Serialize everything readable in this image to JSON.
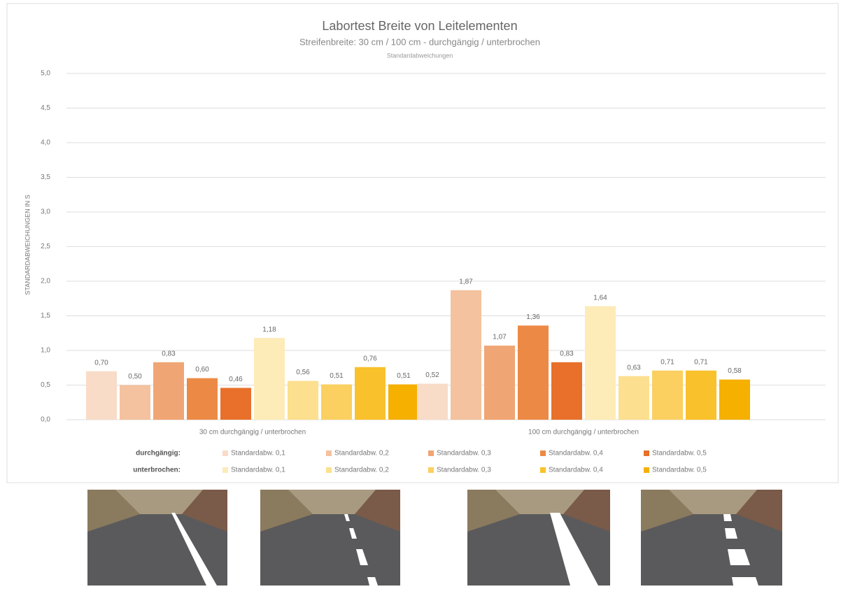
{
  "chart_data": {
    "type": "bar",
    "title": "Labortest Breite von Leitelementen",
    "subtitle": "Streifenbreite: 30 cm / 100 cm - durchgängig / unterbrochen",
    "note": "Standardabweichungen",
    "y_label": "STANDARDABWEICHUNGEN IN S",
    "categories": [
      "30 cm durchgängig / unterbrochen",
      "100 cm durchgängig / unterbrochen"
    ],
    "legend_rows": [
      "durchgängig:",
      "unterbrochen:"
    ],
    "series": [
      {
        "name": "Standardabw. 0,1",
        "color": "#f8dcc8",
        "values": [
          0.7,
          0.52
        ],
        "value_labels": [
          "0,70",
          "0,52"
        ]
      },
      {
        "name": "Standardabw. 0,2",
        "color": "#f4c29e",
        "values": [
          0.5,
          1.87
        ],
        "value_labels": [
          "0,50",
          "1,87"
        ]
      },
      {
        "name": "Standardabw. 0,3",
        "color": "#f0a574",
        "values": [
          0.83,
          1.07
        ],
        "value_labels": [
          "0,83",
          "1,07"
        ]
      },
      {
        "name": "Standardabw. 0,4",
        "color": "#ec8a45",
        "values": [
          0.6,
          1.36
        ],
        "value_labels": [
          "0,60",
          "1,36"
        ]
      },
      {
        "name": "Standardabw. 0,5",
        "color": "#e8702a",
        "values": [
          0.46,
          0.83
        ],
        "value_labels": [
          "0,46",
          "0,83"
        ]
      },
      {
        "name": "Standardabw. 0,1",
        "color": "#fdebb8",
        "values": [
          1.18,
          1.64
        ],
        "value_labels": [
          "1,18",
          "1,64"
        ]
      },
      {
        "name": "Standardabw. 0,2",
        "color": "#fce08f",
        "values": [
          0.56,
          0.63
        ],
        "value_labels": [
          "0,56",
          "0,63"
        ]
      },
      {
        "name": "Standardabw. 0,3",
        "color": "#fbd060",
        "values": [
          0.51,
          0.71
        ],
        "value_labels": [
          "0,51",
          "0,71"
        ]
      },
      {
        "name": "Standardabw. 0,4",
        "color": "#f9c12c",
        "values": [
          0.76,
          0.71
        ],
        "value_labels": [
          "0,76",
          "0,71"
        ]
      },
      {
        "name": "Standardabw. 0,5",
        "color": "#f5b000",
        "values": [
          0.51,
          0.58
        ],
        "value_labels": [
          "0,51",
          "0,58"
        ]
      }
    ],
    "ylim": [
      0,
      5
    ],
    "yticks": [
      {
        "value": 0,
        "label": "0,0"
      },
      {
        "value": 0.5,
        "label": "0,5"
      },
      {
        "value": 1,
        "label": "1,0"
      },
      {
        "value": 1.5,
        "label": "1,5"
      },
      {
        "value": 2,
        "label": "2,0"
      },
      {
        "value": 2.5,
        "label": "2,5"
      },
      {
        "value": 3,
        "label": "3,0"
      },
      {
        "value": 3.5,
        "label": "3,5"
      },
      {
        "value": 4,
        "label": "4,0"
      },
      {
        "value": 4.5,
        "label": "4,5"
      },
      {
        "value": 5,
        "label": "5,0"
      }
    ],
    "grid": true
  }
}
